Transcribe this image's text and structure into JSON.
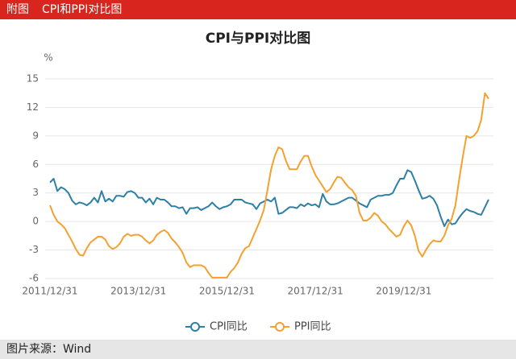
{
  "header": {
    "label": "附图",
    "title": "CPI和PPI对比图"
  },
  "chart_data": {
    "type": "line",
    "title": "CPI与PPI对比图",
    "ylabel": "%",
    "categories": [
      "2011/12/31",
      null,
      null,
      null,
      null,
      null,
      null,
      null,
      null,
      null,
      null,
      null,
      null,
      null,
      null,
      null,
      null,
      null,
      null,
      null,
      null,
      null,
      null,
      null,
      "2013/12/31",
      null,
      null,
      null,
      null,
      null,
      null,
      null,
      null,
      null,
      null,
      null,
      null,
      null,
      null,
      null,
      null,
      null,
      null,
      null,
      null,
      null,
      null,
      null,
      "2015/12/31",
      null,
      null,
      null,
      null,
      null,
      null,
      null,
      null,
      null,
      null,
      null,
      null,
      null,
      null,
      null,
      null,
      null,
      null,
      null,
      null,
      null,
      null,
      null,
      "2017/12/31",
      null,
      null,
      null,
      null,
      null,
      null,
      null,
      null,
      null,
      null,
      null,
      null,
      null,
      null,
      null,
      null,
      null,
      null,
      null,
      null,
      null,
      null,
      null,
      "2019/12/31",
      null,
      null,
      null,
      null,
      null,
      null,
      null,
      null,
      null,
      null,
      null,
      null,
      null,
      null,
      null,
      null,
      null,
      null,
      null,
      null,
      null,
      null,
      null
    ],
    "series": [
      {
        "name": "CPI同比",
        "color": "#2e7fa6",
        "values": [
          4.1,
          4.5,
          3.2,
          3.6,
          3.4,
          3.0,
          2.2,
          1.8,
          2.0,
          1.9,
          1.7,
          2.0,
          2.5,
          2.0,
          3.2,
          2.1,
          2.4,
          2.1,
          2.7,
          2.7,
          2.6,
          3.1,
          3.2,
          3.0,
          2.5,
          2.5,
          2.0,
          2.4,
          1.8,
          2.5,
          2.3,
          2.3,
          2.0,
          1.6,
          1.6,
          1.4,
          1.5,
          0.8,
          1.4,
          1.4,
          1.5,
          1.2,
          1.4,
          1.6,
          2.0,
          1.6,
          1.3,
          1.5,
          1.6,
          1.8,
          2.3,
          2.3,
          2.3,
          2.0,
          1.9,
          1.8,
          1.3,
          1.9,
          2.1,
          2.3,
          2.1,
          2.5,
          0.8,
          0.9,
          1.2,
          1.5,
          1.5,
          1.4,
          1.8,
          1.6,
          1.9,
          1.7,
          1.8,
          1.5,
          2.9,
          2.1,
          1.8,
          1.8,
          1.9,
          2.1,
          2.3,
          2.5,
          2.5,
          2.2,
          1.9,
          1.7,
          1.5,
          2.3,
          2.5,
          2.7,
          2.7,
          2.8,
          2.8,
          3.0,
          3.8,
          4.5,
          4.5,
          5.4,
          5.2,
          4.3,
          3.3,
          2.4,
          2.5,
          2.7,
          2.4,
          1.7,
          0.5,
          -0.5,
          0.2,
          -0.3,
          -0.2,
          0.4,
          0.9,
          1.3,
          1.1,
          1.0,
          0.8,
          0.7,
          1.5,
          2.3
        ]
      },
      {
        "name": "PPI同比",
        "color": "#f4a12f",
        "values": [
          1.7,
          0.7,
          0.0,
          -0.3,
          -0.7,
          -1.4,
          -2.1,
          -2.9,
          -3.5,
          -3.6,
          -2.8,
          -2.2,
          -1.9,
          -1.6,
          -1.6,
          -1.9,
          -2.6,
          -2.9,
          -2.7,
          -2.3,
          -1.6,
          -1.3,
          -1.5,
          -1.4,
          -1.4,
          -1.6,
          -2.0,
          -2.3,
          -2.0,
          -1.4,
          -1.1,
          -0.9,
          -1.2,
          -1.8,
          -2.2,
          -2.7,
          -3.3,
          -4.3,
          -4.8,
          -4.6,
          -4.6,
          -4.6,
          -4.8,
          -5.4,
          -5.9,
          -5.9,
          -5.9,
          -5.9,
          -5.9,
          -5.3,
          -4.9,
          -4.3,
          -3.4,
          -2.8,
          -2.6,
          -1.7,
          -0.8,
          0.1,
          1.2,
          3.3,
          5.5,
          6.9,
          7.8,
          7.6,
          6.4,
          5.5,
          5.5,
          5.5,
          6.3,
          6.9,
          6.9,
          5.8,
          4.9,
          4.3,
          3.7,
          3.1,
          3.4,
          4.1,
          4.7,
          4.6,
          4.1,
          3.6,
          3.3,
          2.7,
          0.9,
          0.1,
          0.1,
          0.4,
          0.9,
          0.6,
          0.0,
          -0.3,
          -0.8,
          -1.2,
          -1.6,
          -1.4,
          -0.5,
          0.1,
          -0.4,
          -1.5,
          -3.1,
          -3.7,
          -3.0,
          -2.4,
          -2.0,
          -2.1,
          -2.1,
          -1.5,
          -0.4,
          0.3,
          1.7,
          4.4,
          6.8,
          9.0,
          8.8,
          9.0,
          9.5,
          10.7,
          13.5,
          12.9
        ]
      }
    ],
    "ylim": [
      -6,
      15
    ],
    "yticks": [
      -6,
      -3,
      0,
      3,
      6,
      9,
      12,
      15
    ],
    "grid": true,
    "legend": "bottom"
  },
  "footer": {
    "source": "图片来源：Wind"
  }
}
